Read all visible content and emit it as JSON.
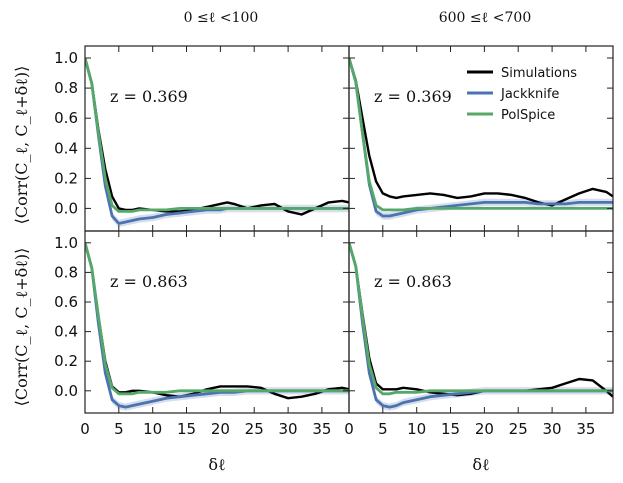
{
  "chart_data": {
    "type": "line",
    "column_titles": [
      "0 ≤ℓ <100",
      "600 ≤ℓ <700"
    ],
    "ylabel": "⟨Corr(C_ℓ, C_ℓ+δℓ)⟩",
    "xlabel": "δℓ",
    "xlim": [
      0,
      39
    ],
    "ylim": [
      -0.15,
      1.08
    ],
    "xticks": [
      0,
      5,
      10,
      15,
      20,
      25,
      30,
      35
    ],
    "yticks": [
      0.0,
      0.2,
      0.4,
      0.6,
      0.8,
      1.0
    ],
    "ytick_labels": [
      "0.0",
      "0.2",
      "0.4",
      "0.6",
      "0.8",
      "1.0"
    ],
    "xtick_labels": [
      "0",
      "5",
      "10",
      "15",
      "20",
      "25",
      "30",
      "35"
    ],
    "legend": {
      "location": "upper right of top-right panel",
      "entries": [
        "Simulations",
        "Jackknife",
        "PolSpice"
      ]
    },
    "colors": {
      "Simulations": "#000000",
      "Jackknife": "#4c72b0",
      "PolSpice": "#55a868",
      "band": "#b4c3dc"
    },
    "panels": [
      {
        "row": 0,
        "col": 0,
        "annotation": "z = 0.369",
        "x": [
          0,
          1,
          2,
          3,
          4,
          5,
          6,
          7,
          8,
          10,
          12,
          14,
          16,
          18,
          20,
          21,
          22,
          24,
          26,
          28,
          30,
          32,
          34,
          36,
          38,
          39
        ],
        "series": [
          {
            "name": "Simulations",
            "values": [
              1.0,
              0.83,
              0.52,
              0.26,
              0.08,
              0.0,
              -0.01,
              -0.01,
              0.0,
              -0.01,
              -0.02,
              -0.02,
              -0.01,
              0.01,
              0.03,
              0.04,
              0.03,
              0.0,
              0.02,
              0.03,
              -0.02,
              -0.04,
              0.0,
              0.04,
              0.05,
              0.04
            ]
          },
          {
            "name": "Jackknife",
            "values": [
              1.0,
              0.83,
              0.48,
              0.15,
              -0.05,
              -0.1,
              -0.09,
              -0.08,
              -0.07,
              -0.06,
              -0.04,
              -0.03,
              -0.02,
              -0.01,
              -0.01,
              0.0,
              0.0,
              0.0,
              0.0,
              0.0,
              0.0,
              0.0,
              0.0,
              0.0,
              0.0,
              0.0
            ]
          },
          {
            "name": "PolSpice",
            "values": [
              1.0,
              0.83,
              0.5,
              0.2,
              0.02,
              -0.02,
              -0.02,
              -0.02,
              -0.01,
              -0.01,
              -0.01,
              0.0,
              0.0,
              0.0,
              0.0,
              0.0,
              0.0,
              0.0,
              0.0,
              0.0,
              0.0,
              0.0,
              0.0,
              0.0,
              0.0,
              0.0
            ]
          }
        ]
      },
      {
        "row": 0,
        "col": 1,
        "annotation": "z = 0.369",
        "x": [
          0,
          1,
          2,
          3,
          4,
          5,
          6,
          7,
          8,
          10,
          12,
          14,
          16,
          18,
          20,
          21,
          22,
          24,
          26,
          28,
          30,
          32,
          34,
          36,
          38,
          39
        ],
        "series": [
          {
            "name": "Simulations",
            "values": [
              1.0,
              0.85,
              0.6,
              0.35,
              0.18,
              0.1,
              0.08,
              0.07,
              0.08,
              0.09,
              0.1,
              0.09,
              0.07,
              0.08,
              0.1,
              0.1,
              0.1,
              0.09,
              0.07,
              0.04,
              0.02,
              0.06,
              0.1,
              0.13,
              0.11,
              0.08
            ]
          },
          {
            "name": "Jackknife",
            "values": [
              1.0,
              0.84,
              0.5,
              0.16,
              -0.02,
              -0.05,
              -0.05,
              -0.04,
              -0.03,
              -0.01,
              0.0,
              0.01,
              0.02,
              0.03,
              0.04,
              0.04,
              0.04,
              0.04,
              0.04,
              0.03,
              0.03,
              0.03,
              0.04,
              0.04,
              0.04,
              0.04
            ]
          },
          {
            "name": "PolSpice",
            "values": [
              1.0,
              0.84,
              0.5,
              0.18,
              0.02,
              -0.01,
              -0.01,
              -0.01,
              -0.01,
              0.0,
              0.0,
              0.0,
              0.0,
              0.0,
              0.0,
              0.0,
              0.0,
              0.0,
              0.0,
              0.0,
              0.0,
              0.0,
              0.0,
              0.0,
              0.0,
              0.0
            ]
          }
        ]
      },
      {
        "row": 1,
        "col": 0,
        "annotation": "z = 0.863",
        "x": [
          0,
          1,
          2,
          3,
          4,
          5,
          6,
          7,
          8,
          10,
          12,
          14,
          16,
          18,
          20,
          21,
          22,
          24,
          26,
          28,
          30,
          32,
          34,
          36,
          38,
          39
        ],
        "series": [
          {
            "name": "Simulations",
            "values": [
              1.0,
              0.83,
              0.5,
              0.2,
              0.03,
              -0.01,
              -0.01,
              0.0,
              0.0,
              -0.01,
              -0.03,
              -0.04,
              -0.02,
              0.01,
              0.03,
              0.03,
              0.03,
              0.03,
              0.02,
              -0.02,
              -0.05,
              -0.04,
              -0.02,
              0.01,
              0.02,
              0.01
            ]
          },
          {
            "name": "Jackknife",
            "values": [
              1.0,
              0.83,
              0.45,
              0.12,
              -0.06,
              -0.1,
              -0.11,
              -0.1,
              -0.09,
              -0.07,
              -0.05,
              -0.04,
              -0.03,
              -0.02,
              -0.01,
              -0.01,
              -0.01,
              0.0,
              0.0,
              0.0,
              0.0,
              0.0,
              0.0,
              0.0,
              0.0,
              0.0
            ]
          },
          {
            "name": "PolSpice",
            "values": [
              1.0,
              0.83,
              0.5,
              0.18,
              0.02,
              -0.02,
              -0.02,
              -0.02,
              -0.01,
              -0.01,
              -0.01,
              0.0,
              0.0,
              0.0,
              0.0,
              0.0,
              0.0,
              0.0,
              0.0,
              0.0,
              0.0,
              0.0,
              0.0,
              0.0,
              0.0,
              0.0
            ]
          }
        ]
      },
      {
        "row": 1,
        "col": 1,
        "annotation": "z = 0.863",
        "x": [
          0,
          1,
          2,
          3,
          4,
          5,
          6,
          7,
          8,
          10,
          12,
          14,
          16,
          18,
          20,
          21,
          22,
          24,
          26,
          28,
          30,
          32,
          34,
          36,
          38,
          39
        ],
        "series": [
          {
            "name": "Simulations",
            "values": [
              1.0,
              0.84,
              0.52,
              0.22,
              0.05,
              0.01,
              0.01,
              0.01,
              0.02,
              0.01,
              -0.01,
              -0.02,
              -0.03,
              -0.02,
              0.0,
              0.0,
              0.0,
              0.0,
              0.0,
              0.01,
              0.02,
              0.05,
              0.08,
              0.07,
              0.0,
              -0.04
            ]
          },
          {
            "name": "Jackknife",
            "values": [
              1.0,
              0.84,
              0.46,
              0.12,
              -0.06,
              -0.1,
              -0.11,
              -0.1,
              -0.08,
              -0.06,
              -0.04,
              -0.03,
              -0.02,
              -0.01,
              0.0,
              0.0,
              0.0,
              0.0,
              0.0,
              0.0,
              0.0,
              0.0,
              0.0,
              0.0,
              0.0,
              0.0
            ]
          },
          {
            "name": "PolSpice",
            "values": [
              1.0,
              0.84,
              0.5,
              0.18,
              0.02,
              -0.02,
              -0.02,
              -0.01,
              -0.01,
              -0.01,
              0.0,
              0.0,
              0.0,
              0.0,
              0.0,
              0.0,
              0.0,
              0.0,
              0.0,
              0.0,
              0.0,
              0.0,
              0.0,
              0.0,
              0.0,
              0.0
            ]
          }
        ]
      }
    ]
  }
}
